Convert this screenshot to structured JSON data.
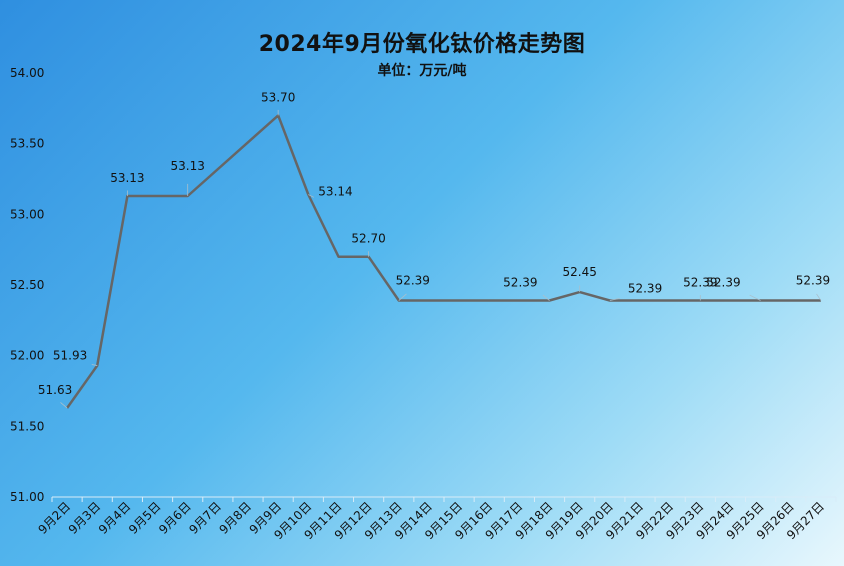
{
  "chart_data": {
    "type": "line",
    "title": "2024年9月份氧化钛价格走势图",
    "subtitle": "单位：万元/吨",
    "xlabel": "",
    "ylabel": "",
    "ylim": [
      51.0,
      54.0
    ],
    "yticks": [
      "51.00",
      "51.50",
      "52.00",
      "52.50",
      "53.00",
      "53.50",
      "54.00"
    ],
    "categories": [
      "9月2日",
      "9月3日",
      "9月4日",
      "9月5日",
      "9月6日",
      "9月7日",
      "9月8日",
      "9月9日",
      "9月10日",
      "9月11日",
      "9月12日",
      "9月13日",
      "9月14日",
      "9月15日",
      "9月16日",
      "9月17日",
      "9月18日",
      "9月19日",
      "9月20日",
      "9月21日",
      "9月22日",
      "9月23日",
      "9月24日",
      "9月25日",
      "9月26日",
      "9月27日"
    ],
    "x": [
      2,
      3,
      4,
      5,
      6,
      9,
      10,
      11,
      12,
      13,
      18,
      19,
      20,
      26,
      27
    ],
    "values": [
      51.63,
      51.93,
      53.13,
      53.13,
      53.13,
      53.7,
      53.14,
      52.7,
      52.7,
      52.39,
      52.39,
      52.45,
      52.39,
      52.39,
      52.39
    ],
    "data_labels": [
      {
        "x": 2,
        "text": "51.63"
      },
      {
        "x": 3,
        "text": "51.93"
      },
      {
        "x": 4,
        "text": "53.13"
      },
      {
        "x": 6,
        "text": "53.13"
      },
      {
        "x": 9,
        "text": "53.70"
      },
      {
        "x": 10,
        "text": "53.14"
      },
      {
        "x": 12,
        "text": "52.70"
      },
      {
        "x": 13,
        "text": "52.39"
      },
      {
        "x": 18,
        "text": "52.39"
      },
      {
        "x": 19,
        "text": "52.45"
      },
      {
        "x": 20,
        "text": "52.39"
      },
      {
        "x": 23,
        "text": "52.39"
      },
      {
        "x": 25,
        "text": "52.39"
      },
      {
        "x": 27,
        "text": "52.39"
      }
    ],
    "line_color": "#666666",
    "grid": false,
    "legend": "none"
  }
}
